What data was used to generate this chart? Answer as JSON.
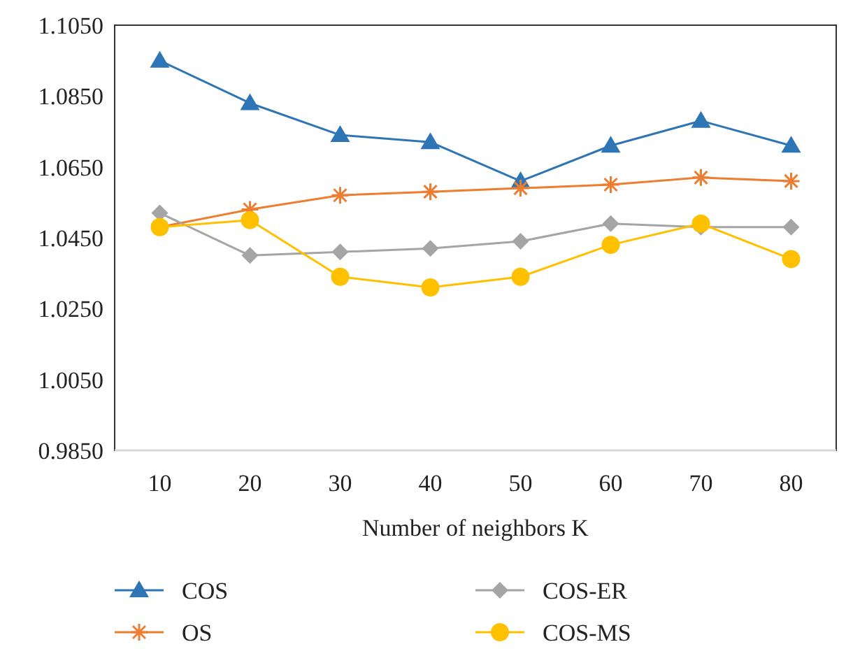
{
  "chart_data": {
    "type": "line",
    "xlabel": "Number of neighbors K",
    "categories": [
      "10",
      "20",
      "30",
      "40",
      "50",
      "60",
      "70",
      "80"
    ],
    "series": [
      {
        "name": "COS",
        "color": "#2e75b6",
        "marker": "triangle",
        "values": [
          1.095,
          1.083,
          1.074,
          1.072,
          1.061,
          1.071,
          1.078,
          1.071
        ]
      },
      {
        "name": "OS",
        "color": "#ed7d31",
        "marker": "cross",
        "values": [
          1.048,
          1.053,
          1.057,
          1.058,
          1.059,
          1.06,
          1.062,
          1.061
        ]
      },
      {
        "name": "COS-ER",
        "color": "#a5a5a5",
        "marker": "diamond",
        "values": [
          1.052,
          1.04,
          1.041,
          1.042,
          1.044,
          1.049,
          1.048,
          1.048
        ]
      },
      {
        "name": "COS-MS",
        "color": "#ffc000",
        "marker": "circle",
        "values": [
          1.048,
          1.05,
          1.034,
          1.031,
          1.034,
          1.043,
          1.049,
          1.039
        ]
      }
    ],
    "ylim": [
      0.985,
      1.105
    ],
    "yticks": [
      {
        "value": 0.985,
        "label": "0.9850"
      },
      {
        "value": 1.005,
        "label": "1.0050"
      },
      {
        "value": 1.025,
        "label": "1.0250"
      },
      {
        "value": 1.045,
        "label": "1.0450"
      },
      {
        "value": 1.065,
        "label": "1.0650"
      },
      {
        "value": 1.085,
        "label": "1.0850"
      },
      {
        "value": 1.105,
        "label": "1.1050"
      }
    ],
    "grid": false,
    "legend": "bottom"
  }
}
